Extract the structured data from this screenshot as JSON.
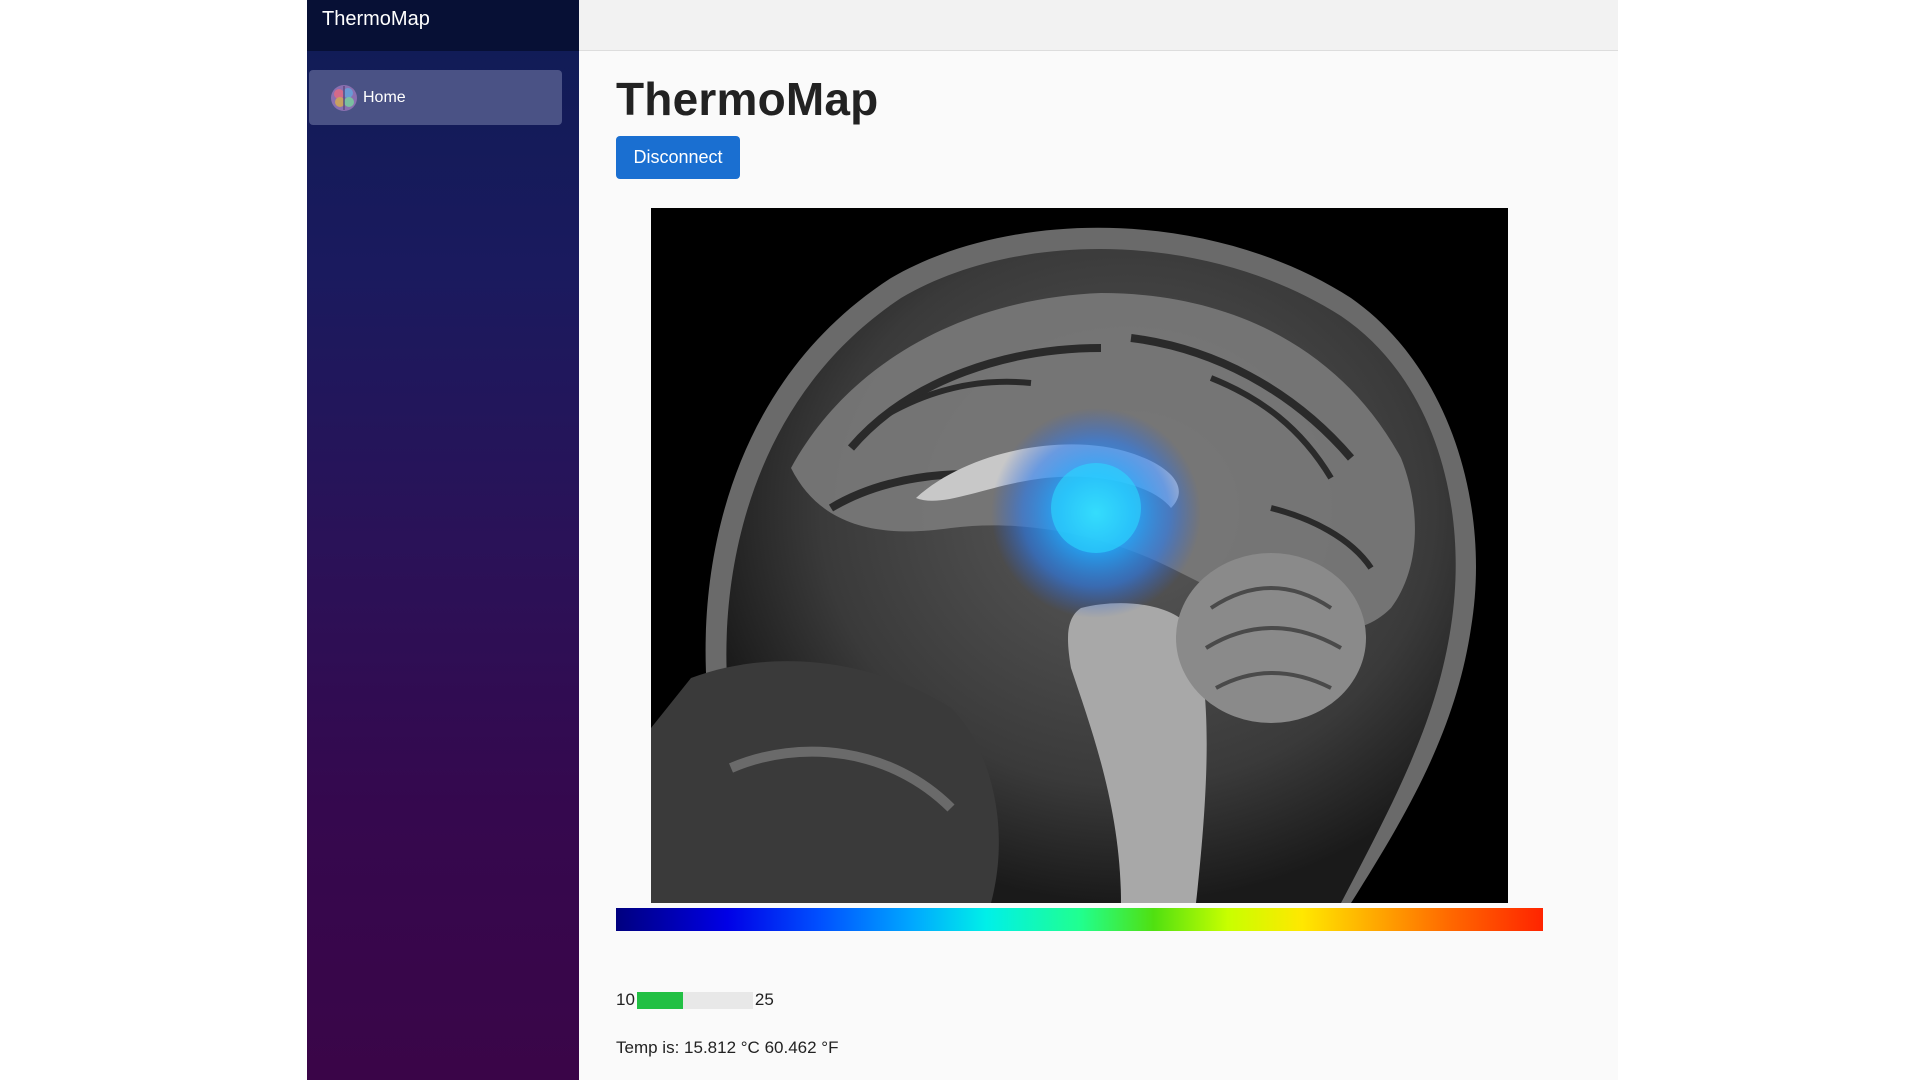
{
  "sidebar": {
    "brand": "ThermoMap",
    "nav": [
      {
        "label": "Home",
        "icon": "brain-icon"
      }
    ]
  },
  "main": {
    "title": "ThermoMap",
    "disconnect_label": "Disconnect",
    "image": {
      "description_icon": "mri-sagittal-brain-heatmap"
    },
    "range": {
      "min": "10",
      "max": "25",
      "fill_fraction": 0.4
    },
    "temp_prefix": "Temp is:",
    "temp_celsius": "15.812 °C",
    "temp_fahrenheit": "60.462 °F"
  },
  "colors": {
    "primary_button": "#1a6fd1",
    "progress_fill": "#22c044",
    "sidebar_top": "#0f1c55",
    "sidebar_bottom": "#3a0548"
  }
}
